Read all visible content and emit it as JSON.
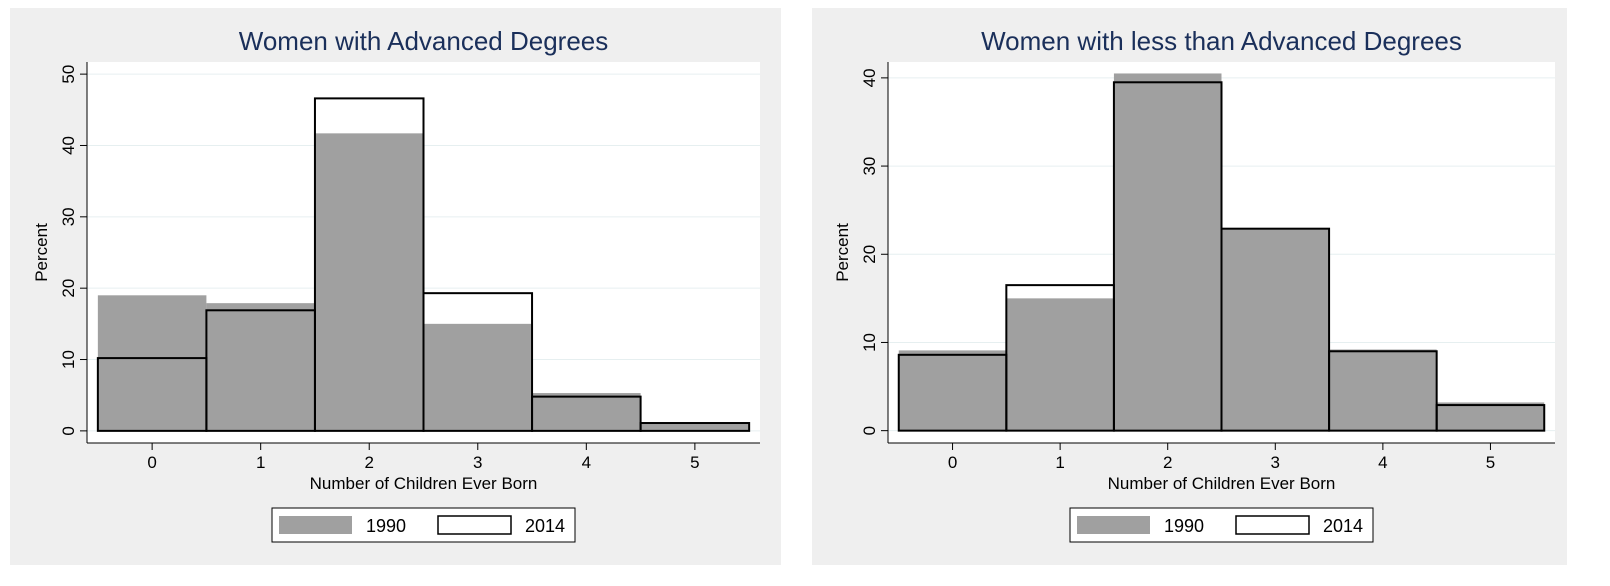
{
  "chart_data": [
    {
      "type": "histogram",
      "title": "Women with Advanced Degrees",
      "x_label": "Number of Children Ever Born",
      "y_label": "Percent",
      "bins": [
        -0.5,
        0.5,
        1.5,
        2.5,
        3.5,
        4.5,
        5.5
      ],
      "series": [
        {
          "name": "1990",
          "color": "#a0a0a0",
          "style": "filled",
          "values": [
            19.0,
            17.9,
            41.7,
            15.0,
            5.3,
            1.1
          ]
        },
        {
          "name": "2014",
          "color": "#000000",
          "style": "outline",
          "values": [
            10.2,
            16.9,
            46.6,
            19.3,
            4.8,
            1.1
          ]
        }
      ],
      "xlim": [
        -0.6,
        5.6
      ],
      "xticks": [
        0,
        1,
        2,
        3,
        4,
        5
      ],
      "ylim": [
        -1.7,
        51.7
      ],
      "yticks": [
        0,
        10,
        20,
        30,
        40,
        50
      ],
      "grid": true,
      "legend": "bottom"
    },
    {
      "type": "histogram",
      "title": "Women with less than Advanced Degrees",
      "x_label": "Number of Children Ever Born",
      "y_label": "Percent",
      "bins": [
        -0.5,
        0.5,
        1.5,
        2.5,
        3.5,
        4.5,
        5.5
      ],
      "series": [
        {
          "name": "1990",
          "color": "#a0a0a0",
          "style": "filled",
          "values": [
            9.1,
            15.0,
            40.5,
            22.9,
            9.2,
            3.2
          ]
        },
        {
          "name": "2014",
          "color": "#000000",
          "style": "outline",
          "values": [
            8.6,
            16.5,
            39.5,
            22.9,
            9.0,
            2.9
          ]
        }
      ],
      "xlim": [
        -0.6,
        5.6
      ],
      "xticks": [
        0,
        1,
        2,
        3,
        4,
        5
      ],
      "ylim": [
        -1.4,
        41.8
      ],
      "yticks": [
        0,
        10,
        20,
        30,
        40
      ],
      "grid": true,
      "legend": "bottom"
    }
  ]
}
